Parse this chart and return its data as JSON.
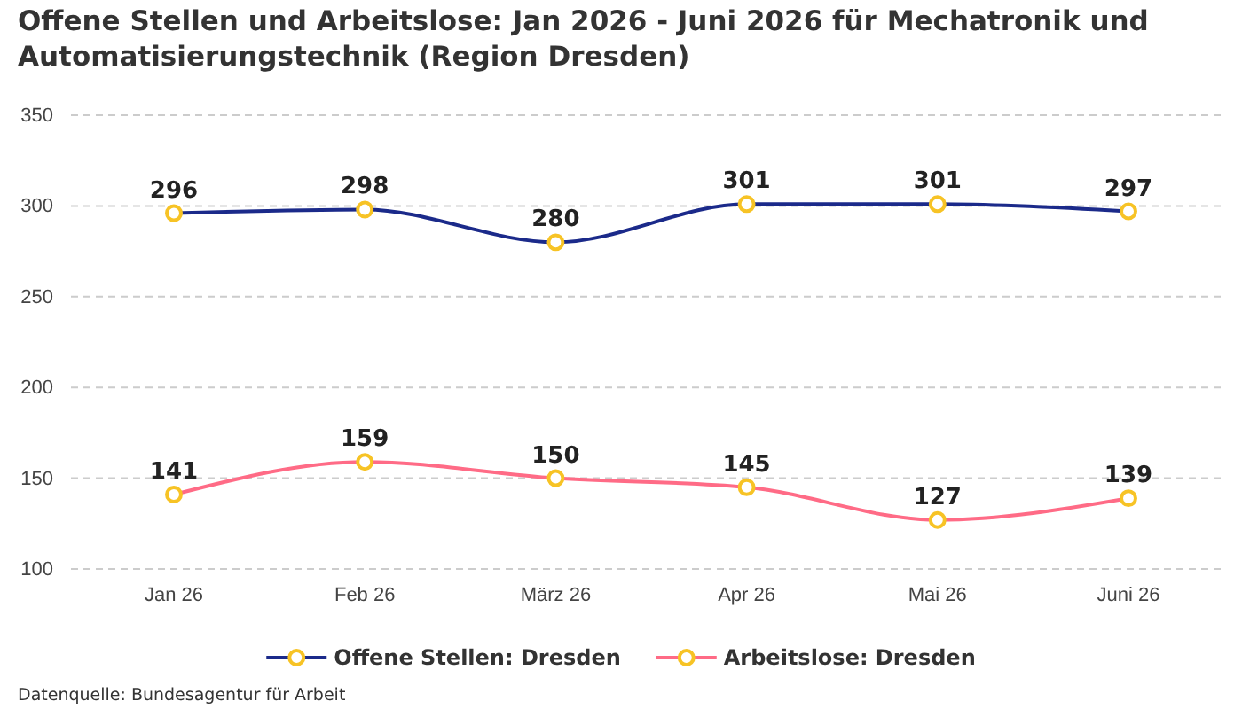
{
  "chart_data": {
    "type": "line",
    "title": "Offene Stellen und Arbeitslose: Jan 2026 - Juni 2026 für Mechatronik und Automatisierungstechnik (Region Dresden)",
    "categories": [
      "Jan 26",
      "Feb 26",
      "März 26",
      "Apr 26",
      "Mai 26",
      "Juni 26"
    ],
    "series": [
      {
        "name": "Offene Stellen: Dresden",
        "color": "#1b2a8a",
        "values": [
          296,
          298,
          280,
          301,
          301,
          297
        ]
      },
      {
        "name": "Arbeitslose: Dresden",
        "color": "#ff6b86",
        "values": [
          141,
          159,
          150,
          145,
          127,
          139
        ]
      }
    ],
    "ylim": [
      100,
      350
    ],
    "yticks": [
      100,
      150,
      200,
      250,
      300,
      350
    ],
    "grid": "y",
    "legend": "bottom",
    "marker": "circle",
    "line_style": "solid",
    "data_labels": true,
    "annotations": [
      "Datenquelle: Bundesagentur für Arbeit"
    ]
  }
}
